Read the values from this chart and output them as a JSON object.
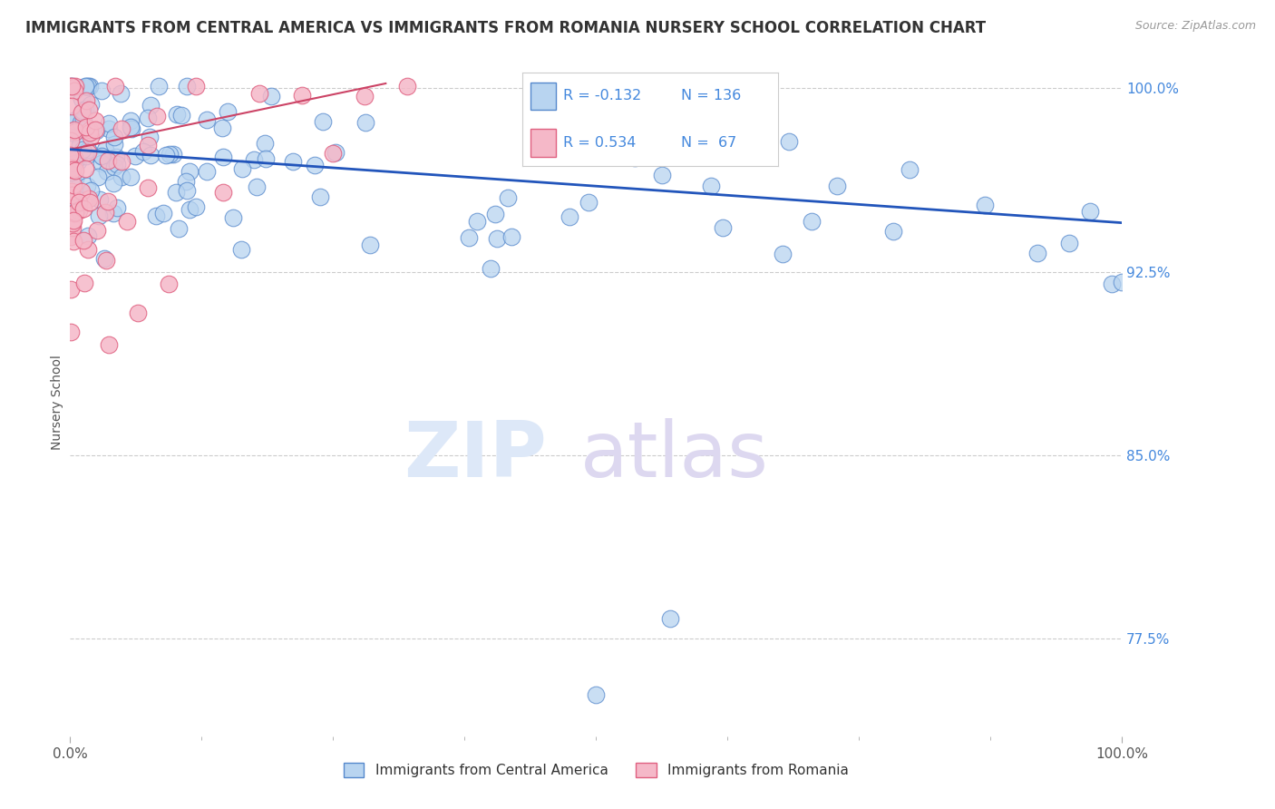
{
  "title": "IMMIGRANTS FROM CENTRAL AMERICA VS IMMIGRANTS FROM ROMANIA NURSERY SCHOOL CORRELATION CHART",
  "source": "Source: ZipAtlas.com",
  "xlabel_blue": "Immigrants from Central America",
  "xlabel_pink": "Immigrants from Romania",
  "ylabel": "Nursery School",
  "r_blue": -0.132,
  "n_blue": 136,
  "r_pink": 0.534,
  "n_pink": 67,
  "xlim": [
    0.0,
    1.0
  ],
  "ylim": [
    0.735,
    1.008
  ],
  "yticks": [
    0.775,
    0.85,
    0.925,
    1.0
  ],
  "ytick_labels": [
    "77.5%",
    "85.0%",
    "92.5%",
    "100.0%"
  ],
  "xtick_labels": [
    "0.0%",
    "100.0%"
  ],
  "color_blue": "#b8d4f0",
  "color_blue_edge": "#5588cc",
  "color_blue_line": "#2255bb",
  "color_pink": "#f5b8c8",
  "color_pink_edge": "#e06080",
  "color_pink_line": "#cc4466",
  "background_color": "#ffffff",
  "title_fontsize": 12,
  "label_color": "#4488dd",
  "axis_label_color": "#555555",
  "watermark_zip_color": "#dde8f8",
  "watermark_atlas_color": "#ddd8f0"
}
